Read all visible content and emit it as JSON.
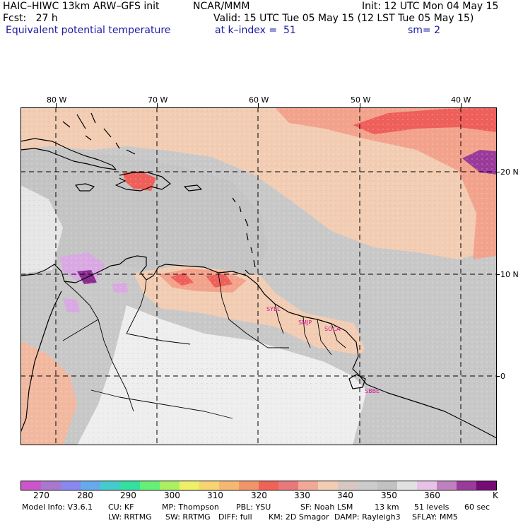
{
  "header": {
    "model": "HAIC–HIWC 13km ARW–GFS init",
    "org": "NCAR/MMM",
    "init": "Init: 12 UTC Mon 04 May 15",
    "fcst": "Fcst:   27 h",
    "valid": "Valid: 15 UTC Tue 05 May 15 (12 LST Tue 05 May 15)",
    "field": "Equivalent potential temperature",
    "level": "at k–index =  51",
    "smooth": "sm= 2"
  },
  "map": {
    "lon_labels": [
      "80 W",
      "70 W",
      "60 W",
      "50 W",
      "40 W"
    ],
    "lat_labels": [
      "20 N",
      "10 N",
      "0"
    ],
    "station_labels": [
      "SYEL",
      "SMJP",
      "SOCA",
      "SBBE"
    ],
    "colors": {
      "background": "#c8c8c8",
      "land_light": "#eeeeee",
      "warm_peach": "#f2cdb3",
      "salmon": "#f3a28c",
      "red": "#ef5f5a",
      "purple_light": "#d9a9e3",
      "purple_dark": "#8a2a8f",
      "station": "#d0138f"
    }
  },
  "colorbar": {
    "labels": [
      "270",
      "280",
      "290",
      "300",
      "310",
      "320",
      "330",
      "340",
      "350",
      "360",
      "K"
    ],
    "colors": [
      "#cc55cc",
      "#aa77cc",
      "#8888ee",
      "#66aaee",
      "#44cccc",
      "#33e0a0",
      "#66ee77",
      "#aaf060",
      "#eef066",
      "#f6d472",
      "#f6b870",
      "#f2946a",
      "#ee6258",
      "#e8787a",
      "#f2a896",
      "#f2cdb4",
      "#d7c8c2",
      "#cccccc",
      "#c2c2c2",
      "#e2e2e2",
      "#e6c2e6",
      "#c080c0",
      "#9a3a9a",
      "#760a76"
    ]
  },
  "footer": {
    "line1": [
      "Model Info: V3.6.1",
      "CU: KF",
      "MP: Thompson",
      "PBL: YSU",
      "SF: Noah LSM",
      "13 km",
      "51 levels",
      "60 sec"
    ],
    "line2": [
      "LW: RRTMG",
      "SW: RRTMG",
      "DIFF: full",
      "KM: 2D Smagor",
      "DAMP: Rayleigh3",
      "SFLAY: MM5"
    ]
  }
}
